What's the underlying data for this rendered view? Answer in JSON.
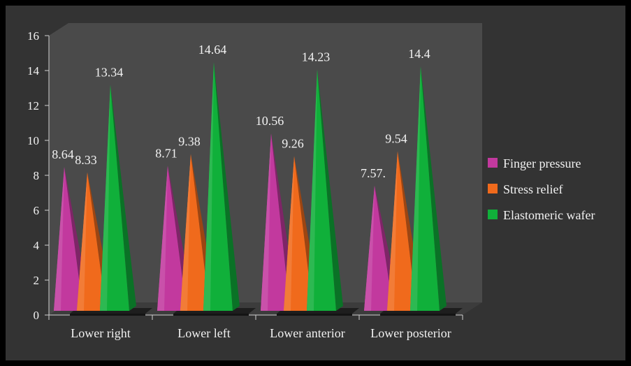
{
  "chart_data": {
    "type": "bar",
    "bar_shape": "pyramid",
    "view": "3d",
    "categories": [
      "Lower right",
      "Lower left",
      "Lower anterior",
      "Lower posterior"
    ],
    "series": [
      {
        "name": "Finger pressure",
        "color": "#c2399e",
        "values": [
          8.64,
          8.71,
          10.56,
          7.57
        ],
        "labels": [
          "8.64",
          "8.71",
          "10.56",
          "7.57."
        ]
      },
      {
        "name": "Stress relief",
        "color": "#f06a1c",
        "values": [
          8.33,
          9.38,
          9.26,
          9.54
        ],
        "labels": [
          "8.33",
          "9.38",
          "9.26",
          "9.54"
        ]
      },
      {
        "name": "Elastomeric wafer",
        "color": "#10b03a",
        "values": [
          13.34,
          14.64,
          14.23,
          14.4
        ],
        "labels": [
          "13.34",
          "14.64",
          "14.23",
          "14.4"
        ]
      }
    ],
    "y_ticks": [
      "0",
      "2",
      "4",
      "6",
      "8",
      "10",
      "12",
      "14",
      "16"
    ],
    "ylim": [
      0,
      16
    ],
    "title": "",
    "xlabel": "",
    "ylabel": "",
    "legend_position": "right",
    "grid": false,
    "colors": {
      "page_background": "#000000",
      "chart_background": "#333333",
      "back_wall": "#4a4a4a",
      "floor": "#3c3c3c",
      "text": "#f2f2f2"
    }
  }
}
